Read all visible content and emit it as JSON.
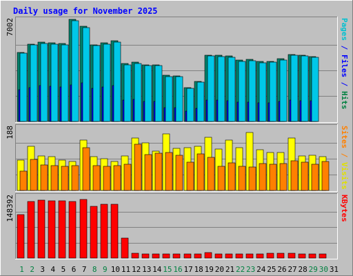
{
  "chart_data": {
    "type": "bar",
    "title": "Daily usage for November 2025",
    "categories": [
      "1",
      "2",
      "3",
      "4",
      "5",
      "6",
      "7",
      "8",
      "9",
      "10",
      "11",
      "12",
      "13",
      "14",
      "15",
      "16",
      "17",
      "18",
      "19",
      "20",
      "21",
      "22",
      "23",
      "24",
      "25",
      "26",
      "27",
      "28",
      "29",
      "30",
      "31"
    ],
    "weekend_days": [
      "1",
      "2",
      "8",
      "9",
      "15",
      "16",
      "22",
      "23",
      "29",
      "30"
    ],
    "panels": [
      {
        "id": "hits-files-pages",
        "ymax_label": "7002",
        "ylim": [
          0,
          7002
        ],
        "ylabel_parts": [
          {
            "text": "Pages",
            "color": "#00c0d0"
          },
          {
            "text": " / ",
            "color": "#0000ff"
          },
          {
            "text": "Files",
            "color": "#0000ff"
          },
          {
            "text": " / ",
            "color": "#0000ff"
          },
          {
            "text": "Hits",
            "color": "#008040"
          }
        ],
        "series": [
          {
            "name": "Hits",
            "color": "#00806a",
            "offset": 0,
            "values": [
              4750,
              5310,
              5420,
              5380,
              5340,
              7002,
              6530,
              5250,
              5370,
              5530,
              3960,
              4050,
              3900,
              3880,
              3150,
              3130,
              2320,
              2740,
              4560,
              4530,
              4500,
              4210,
              4240,
              4100,
              4130,
              4310,
              4590,
              4550,
              4450,
              null,
              null
            ]
          },
          {
            "name": "Files",
            "color": "#0000ff",
            "offset": 0.2,
            "values": [
              2180,
              2320,
              2450,
              2410,
              2380,
              2510,
              2670,
              2250,
              2360,
              2470,
              1460,
              1510,
              1380,
              1360,
              950,
              940,
              690,
              920,
              1470,
              1450,
              1420,
              1320,
              1340,
              1280,
              1290,
              1350,
              1470,
              1440,
              1410,
              null,
              null
            ]
          },
          {
            "name": "Pages",
            "color": "#00c8e8",
            "offset": 0.4,
            "values": [
              4690,
              5240,
              5360,
              5320,
              5270,
              6930,
              6440,
              5190,
              5310,
              5460,
              3890,
              3980,
              3830,
              3810,
              3090,
              3060,
              2250,
              2680,
              4490,
              4460,
              4420,
              4130,
              4160,
              4020,
              4050,
              4230,
              4520,
              4480,
              4380,
              null,
              null
            ]
          }
        ]
      },
      {
        "id": "visits-sites",
        "ymax_label": "188",
        "ylim": [
          0,
          188
        ],
        "ylabel_parts": [
          {
            "text": "Sites",
            "color": "#ff8000"
          },
          {
            "text": " / ",
            "color": "#ff8000"
          },
          {
            "text": "Visits",
            "color": "#e0e000"
          }
        ],
        "series": [
          {
            "name": "Visits",
            "color": "#ffff00",
            "offset": 0,
            "values": [
              89,
              130,
              103,
              101,
              90,
              85,
              150,
              101,
              93,
              85,
              103,
              155,
              140,
              116,
              168,
              124,
              127,
              130,
              158,
              123,
              150,
              126,
              172,
              120,
              113,
              113,
              155,
              102,
              104,
              101,
              null
            ]
          },
          {
            "name": "Sites",
            "color": "#ff8000",
            "offset": 0.4,
            "values": [
              58,
              92,
              76,
              74,
              72,
              74,
              126,
              74,
              72,
              74,
              78,
              136,
              106,
              110,
              112,
              104,
              84,
              108,
              98,
              72,
              81,
              72,
              70,
              80,
              77,
              80,
              88,
              84,
              78,
              86,
              null
            ]
          }
        ]
      },
      {
        "id": "kbytes",
        "ymax_label": "148392",
        "ylim": [
          0,
          148392
        ],
        "ylabel_parts": [
          {
            "text": "KBytes",
            "color": "#ff0000"
          }
        ],
        "series": [
          {
            "name": "KBytes",
            "color": "#ff0000",
            "offset": 0,
            "values": [
              104000,
              134800,
              138300,
              137500,
              136800,
              134500,
              140000,
              123000,
              128000,
              128300,
              48000,
              11000,
              10000,
              9800,
              9500,
              9600,
              10200,
              9800,
              13000,
              10000,
              10100,
              10000,
              9500,
              10300,
              11000,
              12000,
              11500,
              10500,
              9800,
              10200,
              null
            ]
          }
        ]
      }
    ]
  }
}
